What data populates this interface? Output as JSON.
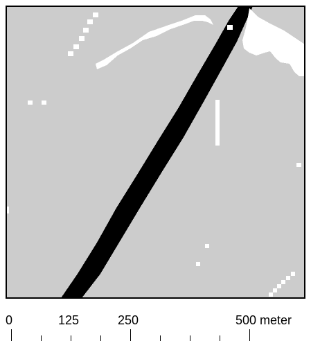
{
  "map": {
    "colors": {
      "background": "#cccccc",
      "frame": "#000000",
      "feature_dark": "#000000",
      "feature_light": "#ffffff"
    }
  },
  "scale_bar": {
    "labels": [
      "0",
      "125",
      "250",
      "500 meter"
    ],
    "unit": "meter"
  }
}
